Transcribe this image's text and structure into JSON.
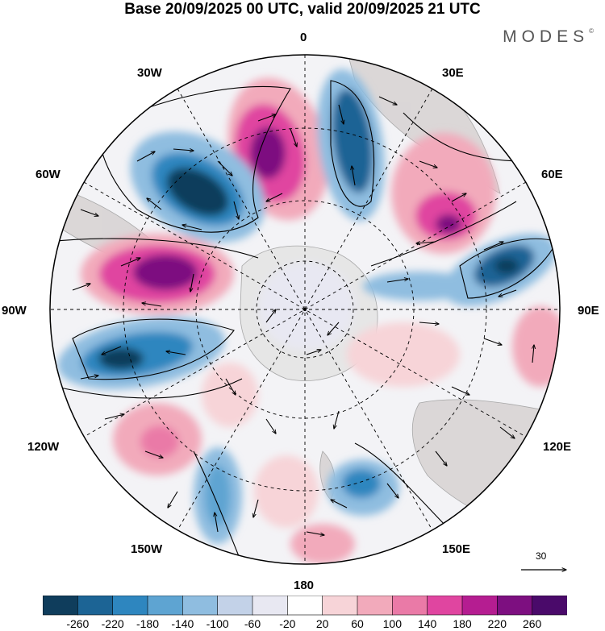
{
  "header": {
    "title": "Base 20/09/2025 00 UTC, valid 20/09/2025 21 UTC"
  },
  "brand": {
    "logo_text": "MODES",
    "logo_mark": "©"
  },
  "longitude_labels": {
    "l0": "0",
    "l30e": "30E",
    "l60e": "60E",
    "l90e": "90E",
    "l120e": "120E",
    "l150e": "150E",
    "l180": "180",
    "l150w": "150W",
    "l120w": "120W",
    "l90w": "90W",
    "l60w": "60W",
    "l30w": "30W"
  },
  "reference_vector": {
    "value": "30"
  },
  "colorbar": {
    "ticks": [
      "-260",
      "-220",
      "-180",
      "-140",
      "-100",
      "-60",
      "-20",
      "20",
      "60",
      "100",
      "140",
      "180",
      "220",
      "260"
    ],
    "colors": [
      "#0f3d5c",
      "#1c6495",
      "#2e86bf",
      "#5ea4d2",
      "#8fbde0",
      "#c3d2e8",
      "#e8e8f2",
      "#ffffff",
      "#f7d4d8",
      "#f2aabb",
      "#ea7aa7",
      "#e045a0",
      "#b51d91",
      "#7d0f80",
      "#4a0a6a"
    ]
  },
  "style_colors": {
    "land": "#c9c9c9",
    "coast": "#999999",
    "grid": "#000000"
  }
}
